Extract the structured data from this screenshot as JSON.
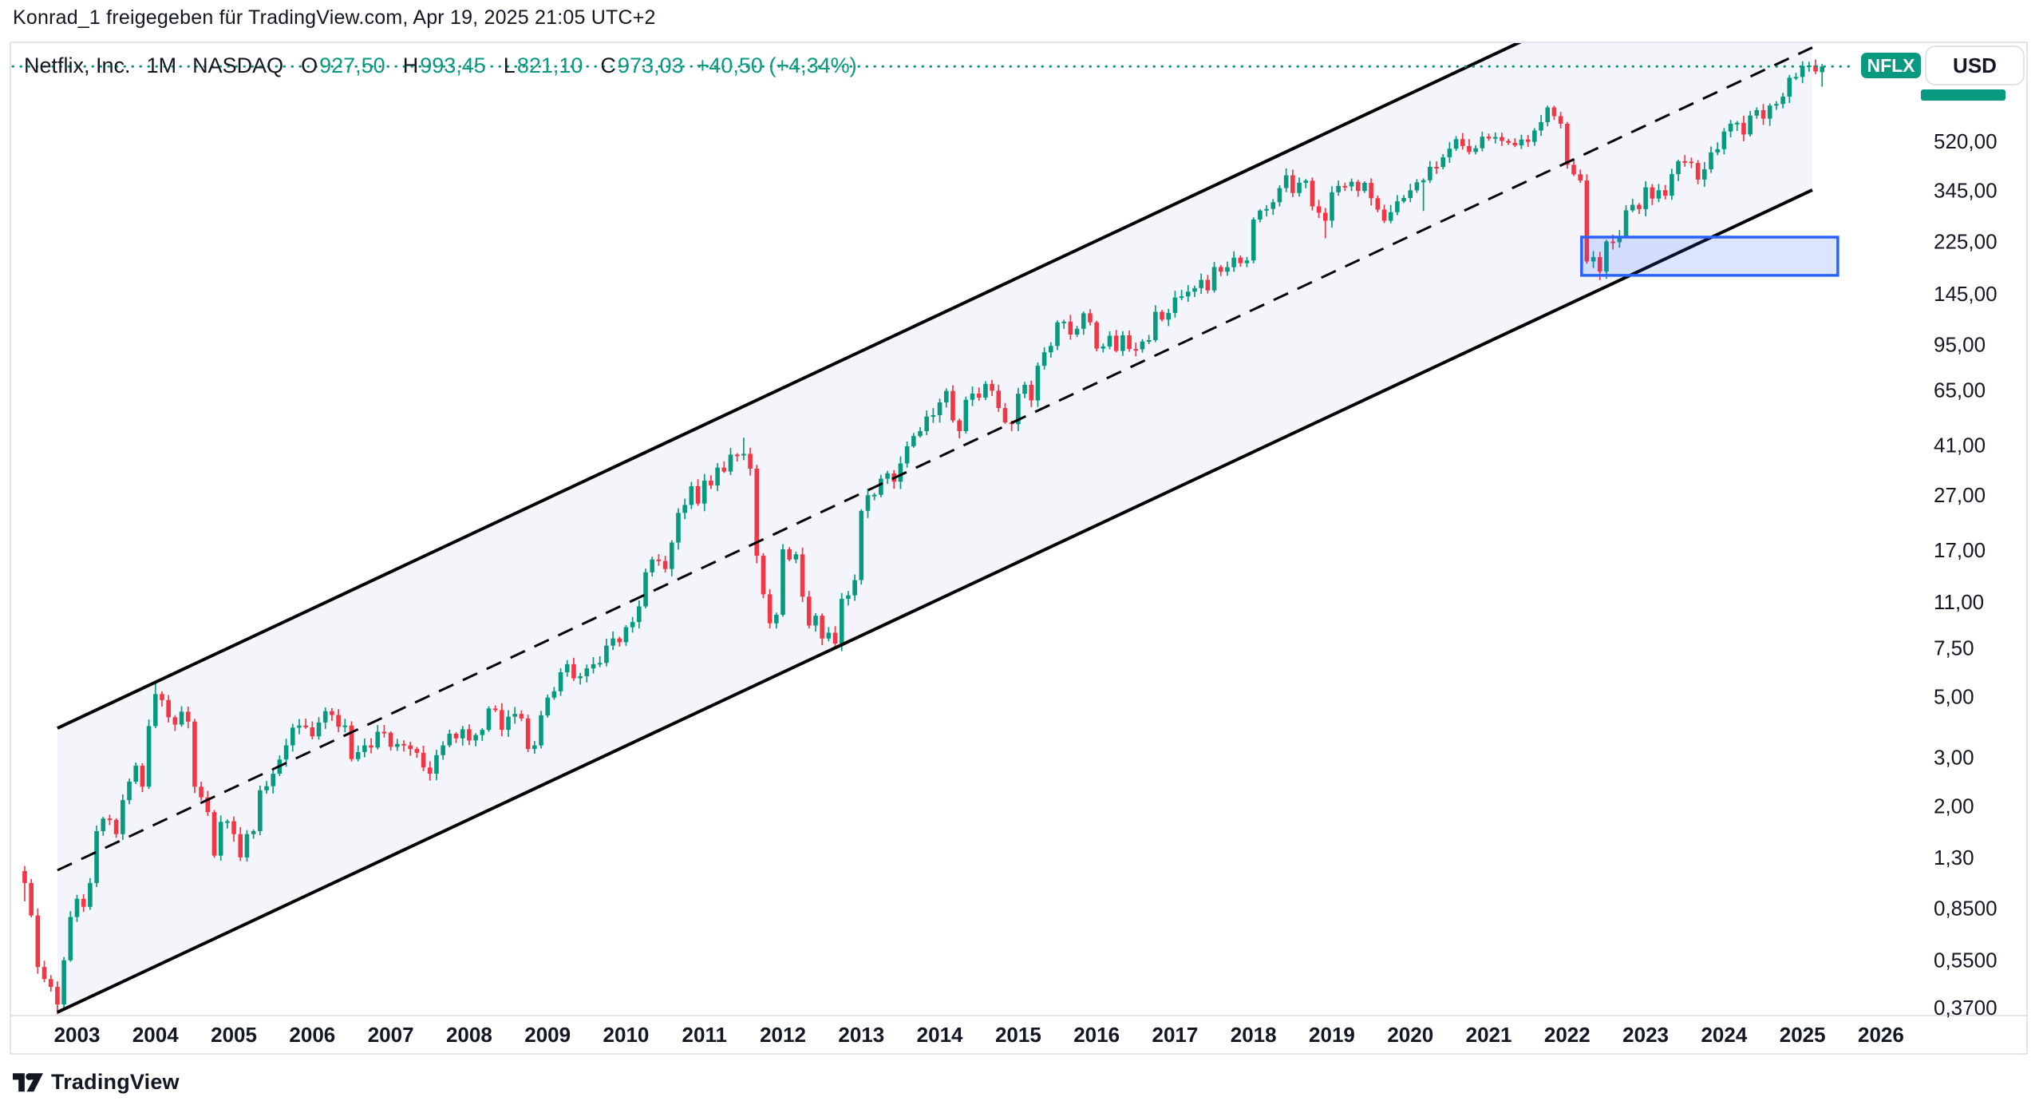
{
  "header": {
    "share_text": "Konrad_1 freigegeben für TradingView.com, Apr 19, 2025 21:05 UTC+2"
  },
  "legend": {
    "symbol": "Netflix, Inc.",
    "interval": "1M",
    "exchange": "NASDAQ",
    "ohlc": [
      {
        "label": "O",
        "value": "927,50"
      },
      {
        "label": "H",
        "value": "993,45"
      },
      {
        "label": "L",
        "value": "821,10"
      },
      {
        "label": "C",
        "value": "973,03"
      }
    ],
    "change": "+40,50 (+4,34%)"
  },
  "top_right": {
    "symbol": "NFLX",
    "currency": "USD"
  },
  "footer": {
    "brand": "TradingView"
  },
  "colors": {
    "up": "#089981",
    "down": "#f23645",
    "accent_teal": "#089981",
    "annotation_blue": "#2962ff",
    "annotation_blue_fill": "rgba(41,98,255,0.17)",
    "channel_fill": "rgba(110,130,190,0.08)",
    "channel_line": "#000000",
    "text": "#131722",
    "border": "#e0e3eb"
  },
  "chart_data": {
    "type": "candlestick",
    "title": "Netflix, Inc. monthly candlestick chart with ascending log-scale trend channel",
    "symbol": "NFLX",
    "exchange": "NASDAQ",
    "interval": "1M",
    "currency": "USD",
    "scale": "logarithmic",
    "grid": false,
    "start_month": "2002-05",
    "current_price": 973.03,
    "x_axis": {
      "years": [
        "2003",
        "2004",
        "2005",
        "2006",
        "2007",
        "2008",
        "2009",
        "2010",
        "2011",
        "2012",
        "2013",
        "2014",
        "2015",
        "2016",
        "2017",
        "2018",
        "2019",
        "2020",
        "2021",
        "2022",
        "2023",
        "2024",
        "2025",
        "2026"
      ]
    },
    "y_axis": {
      "ticks": [
        {
          "label": "520,00",
          "value": 520
        },
        {
          "label": "345,00",
          "value": 345
        },
        {
          "label": "225,00",
          "value": 225
        },
        {
          "label": "145,00",
          "value": 145
        },
        {
          "label": "95,00",
          "value": 95
        },
        {
          "label": "65,00",
          "value": 65
        },
        {
          "label": "41,00",
          "value": 41
        },
        {
          "label": "27,00",
          "value": 27
        },
        {
          "label": "17,00",
          "value": 17
        },
        {
          "label": "11,00",
          "value": 11
        },
        {
          "label": "7,50",
          "value": 7.5
        },
        {
          "label": "5,00",
          "value": 5
        },
        {
          "label": "3,00",
          "value": 3
        },
        {
          "label": "2,00",
          "value": 2
        },
        {
          "label": "1,30",
          "value": 1.3
        },
        {
          "label": "0,8500",
          "value": 0.85
        },
        {
          "label": "0,5500",
          "value": 0.55
        },
        {
          "label": "0,3700",
          "value": 0.37
        }
      ]
    },
    "monthly_closes": {
      "2002": [
        1.05,
        0.8,
        0.52,
        0.47,
        0.44,
        0.38,
        0.55,
        0.79
      ],
      "2003": [
        0.92,
        0.86,
        1.05,
        1.62,
        1.8,
        1.78,
        1.58,
        2.1,
        2.45,
        2.8,
        2.35,
        3.9
      ],
      "2004": [
        5.1,
        4.85,
        4.2,
        3.95,
        4.4,
        4.05,
        2.35,
        2.15,
        1.9,
        1.32,
        1.75,
        1.76
      ],
      "2005": [
        1.58,
        1.3,
        1.58,
        1.62,
        2.28,
        2.36,
        2.62,
        2.95,
        3.32,
        3.85,
        3.92,
        3.86
      ],
      "2006": [
        3.58,
        4.02,
        4.42,
        4.28,
        3.88,
        3.92,
        2.96,
        3.14,
        3.32,
        3.26,
        3.72,
        3.69
      ],
      "2007": [
        3.28,
        3.36,
        3.32,
        3.22,
        3.12,
        2.76,
        2.62,
        3.06,
        3.32,
        3.66,
        3.52,
        3.8
      ],
      "2008": [
        3.46,
        3.62,
        3.78,
        4.52,
        4.46,
        3.78,
        4.22,
        4.32,
        4.16,
        3.22,
        3.32,
        4.27
      ],
      "2009": [
        4.95,
        5.22,
        6.12,
        6.55,
        5.82,
        5.92,
        6.32,
        6.55,
        6.62,
        7.65,
        8.12,
        7.87
      ],
      "2010": [
        8.92,
        9.32,
        10.62,
        14.12,
        15.72,
        15.52,
        14.52,
        18.12,
        23.22,
        24.82,
        29.02,
        25.1
      ],
      "2011": [
        30.42,
        29.22,
        33.92,
        32.82,
        37.82,
        37.55,
        38.05,
        33.62,
        16.22,
        11.75,
        9.22,
        9.9
      ],
      "2012": [
        17.12,
        15.72,
        16.42,
        11.52,
        9.05,
        9.82,
        8.12,
        8.52,
        7.78,
        11.32,
        11.65,
        13.23
      ],
      "2013": [
        23.62,
        26.92,
        27.02,
        30.92,
        32.32,
        30.15,
        35.12,
        40.55,
        44.17,
        46.02,
        52.02,
        52.6
      ],
      "2014": [
        58.52,
        64.42,
        50.32,
        46.02,
        59.82,
        63.02,
        60.92,
        68.32,
        64.52,
        55.82,
        49.52,
        48.8
      ],
      "2015": [
        62.92,
        67.82,
        59.52,
        79.52,
        89.02,
        93.85,
        114.31,
        115.03,
        103.26,
        108.38,
        123.33,
        114.38
      ],
      "2016": [
        91.84,
        93.41,
        102.23,
        90.03,
        102.57,
        91.48,
        91.25,
        97.45,
        98.55,
        124.87,
        117.0,
        123.8
      ],
      "2017": [
        140.71,
        142.13,
        147.81,
        152.2,
        163.07,
        149.41,
        181.66,
        174.71,
        181.35,
        196.43,
        187.58,
        191.96
      ],
      "2018": [
        270.3,
        291.38,
        295.35,
        312.46,
        351.6,
        391.43,
        337.45,
        367.68,
        374.13,
        301.78,
        286.13,
        267.66
      ],
      "2019": [
        339.5,
        358.1,
        356.56,
        370.54,
        343.28,
        367.32,
        322.99,
        293.75,
        267.62,
        287.41,
        314.66,
        323.57
      ],
      "2020": [
        345.09,
        369.03,
        375.5,
        419.85,
        419.73,
        455.04,
        488.88,
        529.56,
        500.03,
        475.74,
        490.7,
        540.73
      ],
      "2021": [
        532.39,
        538.85,
        521.66,
        513.47,
        502.81,
        528.21,
        517.57,
        569.19,
        610.34,
        690.31,
        641.9,
        602.44
      ],
      "2022": [
        427.14,
        394.52,
        374.59,
        190.36,
        197.44,
        174.87,
        224.9,
        223.56,
        235.44,
        291.88,
        305.53,
        294.88
      ],
      "2023": [
        353.86,
        322.13,
        345.48,
        329.93,
        395.23,
        440.49,
        438.97,
        433.68,
        377.6,
        411.69,
        473.97,
        486.88
      ],
      "2024": [
        564.11,
        602.91,
        607.33,
        550.64,
        644.97,
        674.88,
        628.62,
        701.35,
        710.54,
        756.0,
        885.49,
        891.32
      ],
      "2025": [
        977.59,
        980.99,
        932.53,
        973.03
      ]
    },
    "ohlc_overrides": {
      "2002-05": {
        "open": 1.16,
        "high": 1.21,
        "low": 0.9
      },
      "2002-10": {
        "low": 0.35
      },
      "2004-01": {
        "high": 5.68
      },
      "2011-07": {
        "high": 43.54
      },
      "2018-12": {
        "low": 231.23
      },
      "2020-03": {
        "low": 290.25
      },
      "2021-11": {
        "high": 700.99
      },
      "2022-06": {
        "low": 162.8
      },
      "2025-04": {
        "open": 927.5,
        "high": 993.45,
        "low": 821.1
      }
    },
    "annotations": {
      "channel": {
        "i1": 5,
        "i2": 273.5,
        "upper": [
          3.833,
          3755
        ],
        "middle": [
          1.168,
          1140
        ],
        "lower": [
          0.356,
          346
        ],
        "middle_style": "dashed"
      },
      "rectangle": {
        "i1": 238.2,
        "i2": 277.4,
        "price_top": 233.3,
        "price_bottom": 169.4
      },
      "current_price_line": {
        "price": 973.03,
        "style": "dotted"
      }
    }
  }
}
